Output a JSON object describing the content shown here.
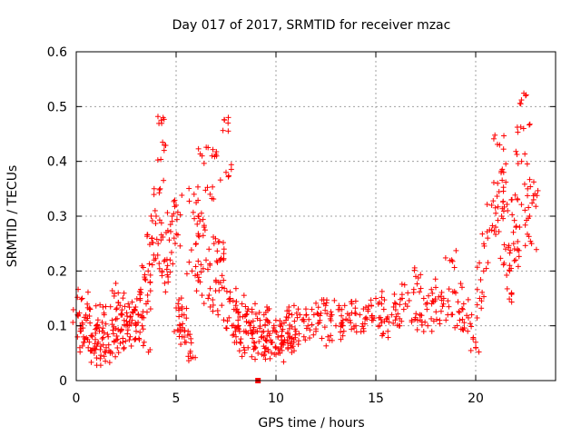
{
  "chart_data": {
    "type": "scatter",
    "title": "Day 017 of 2017, SRMTID for receiver mzac",
    "xlabel": "GPS time / hours",
    "ylabel": "SRMTID / TECUs",
    "xlim": [
      0,
      24
    ],
    "ylim": [
      0,
      0.6
    ],
    "xticks": [
      0,
      5,
      10,
      15,
      20
    ],
    "xtick_labels": [
      "0",
      "5",
      "10",
      "15",
      "20"
    ],
    "yticks": [
      0,
      0.1,
      0.2,
      0.3,
      0.4,
      0.5,
      0.6
    ],
    "ytick_labels": [
      "0",
      "0.1",
      "0.2",
      "0.3",
      "0.4",
      "0.5",
      "0.6"
    ],
    "grid": true,
    "marker": "plus",
    "marker_color": "#ff0000",
    "series": [
      {
        "name": "SRMTID",
        "points": [
          [
            0.1,
            0.12
          ],
          [
            0.2,
            0.09
          ],
          [
            0.3,
            0.15
          ],
          [
            0.4,
            0.07
          ],
          [
            0.5,
            0.11
          ],
          [
            0.6,
            0.06
          ],
          [
            0.7,
            0.13
          ],
          [
            0.8,
            0.08
          ],
          [
            0.9,
            0.05
          ],
          [
            1.0,
            0.1
          ],
          [
            1.1,
            0.07
          ],
          [
            1.2,
            0.04
          ],
          [
            1.3,
            0.09
          ],
          [
            1.4,
            0.12
          ],
          [
            1.5,
            0.06
          ],
          [
            1.6,
            0.08
          ],
          [
            1.7,
            0.05
          ],
          [
            1.8,
            0.11
          ],
          [
            1.9,
            0.07
          ],
          [
            2.0,
            0.13
          ],
          [
            2.1,
            0.16
          ],
          [
            2.2,
            0.09
          ],
          [
            2.3,
            0.12
          ],
          [
            2.4,
            0.06
          ],
          [
            2.5,
            0.1
          ],
          [
            2.6,
            0.14
          ],
          [
            2.7,
            0.08
          ],
          [
            2.8,
            0.11
          ],
          [
            2.9,
            0.13
          ],
          [
            3.0,
            0.09
          ],
          [
            3.1,
            0.12
          ],
          [
            3.2,
            0.15
          ],
          [
            3.3,
            0.1
          ],
          [
            3.4,
            0.07
          ],
          [
            3.5,
            0.14
          ],
          [
            3.6,
            0.2
          ],
          [
            3.7,
            0.18
          ],
          [
            3.8,
            0.26
          ],
          [
            3.9,
            0.22
          ],
          [
            4.0,
            0.3
          ],
          [
            4.1,
            0.25
          ],
          [
            4.2,
            0.35
          ],
          [
            4.3,
            0.2
          ],
          [
            4.35,
            0.48
          ],
          [
            4.4,
            0.42
          ],
          [
            4.5,
            0.27
          ],
          [
            4.6,
            0.18
          ],
          [
            4.7,
            0.22
          ],
          [
            4.8,
            0.3
          ],
          [
            4.9,
            0.26
          ],
          [
            5.0,
            0.32
          ],
          [
            5.1,
            0.14
          ],
          [
            5.2,
            0.1
          ],
          [
            5.3,
            0.08
          ],
          [
            5.4,
            0.12
          ],
          [
            5.5,
            0.07
          ],
          [
            5.6,
            0.09
          ],
          [
            5.7,
            0.05
          ],
          [
            5.8,
            0.2
          ],
          [
            5.9,
            0.34
          ],
          [
            6.0,
            0.25
          ],
          [
            6.1,
            0.3
          ],
          [
            6.2,
            0.18
          ],
          [
            6.3,
            0.41
          ],
          [
            6.4,
            0.28
          ],
          [
            6.5,
            0.22
          ],
          [
            6.6,
            0.15
          ],
          [
            6.7,
            0.34
          ],
          [
            6.8,
            0.41
          ],
          [
            6.9,
            0.25
          ],
          [
            7.0,
            0.18
          ],
          [
            7.1,
            0.12
          ],
          [
            7.2,
            0.22
          ],
          [
            7.3,
            0.17
          ],
          [
            7.4,
            0.24
          ],
          [
            7.5,
            0.38
          ],
          [
            7.6,
            0.47
          ],
          [
            7.7,
            0.15
          ],
          [
            7.8,
            0.1
          ],
          [
            7.9,
            0.13
          ],
          [
            8.0,
            0.08
          ],
          [
            8.1,
            0.11
          ],
          [
            8.2,
            0.07
          ],
          [
            8.3,
            0.14
          ],
          [
            8.4,
            0.09
          ],
          [
            8.5,
            0.12
          ],
          [
            8.6,
            0.06
          ],
          [
            8.7,
            0.1
          ],
          [
            8.8,
            0.13
          ],
          [
            8.9,
            0.07
          ],
          [
            9.0,
            0.09
          ],
          [
            9.1,
            0.05
          ],
          [
            9.2,
            0.11
          ],
          [
            9.3,
            0.08
          ],
          [
            9.4,
            0.12
          ],
          [
            9.5,
            0.06
          ],
          [
            9.6,
            0.09
          ],
          [
            9.7,
            0.04
          ],
          [
            9.8,
            0.07
          ],
          [
            9.9,
            0.1
          ],
          [
            10.0,
            0.06
          ],
          [
            10.1,
            0.08
          ],
          [
            10.2,
            0.05
          ],
          [
            10.3,
            0.09
          ],
          [
            10.4,
            0.07
          ],
          [
            10.5,
            0.11
          ],
          [
            10.6,
            0.06
          ],
          [
            10.7,
            0.08
          ],
          [
            10.8,
            0.12
          ],
          [
            10.9,
            0.07
          ],
          [
            11.0,
            0.09
          ],
          [
            11.2,
            0.12
          ],
          [
            11.4,
            0.08
          ],
          [
            11.6,
            0.1
          ],
          [
            11.8,
            0.13
          ],
          [
            12.0,
            0.09
          ],
          [
            12.2,
            0.11
          ],
          [
            12.4,
            0.14
          ],
          [
            12.6,
            0.08
          ],
          [
            12.8,
            0.12
          ],
          [
            13.0,
            0.1
          ],
          [
            13.2,
            0.13
          ],
          [
            13.4,
            0.09
          ],
          [
            13.6,
            0.11
          ],
          [
            13.8,
            0.14
          ],
          [
            14.0,
            0.1
          ],
          [
            14.2,
            0.12
          ],
          [
            14.4,
            0.09
          ],
          [
            14.6,
            0.13
          ],
          [
            14.8,
            0.11
          ],
          [
            15.0,
            0.15
          ],
          [
            15.2,
            0.1
          ],
          [
            15.4,
            0.13
          ],
          [
            15.6,
            0.09
          ],
          [
            15.8,
            0.12
          ],
          [
            16.0,
            0.14
          ],
          [
            16.2,
            0.1
          ],
          [
            16.4,
            0.13
          ],
          [
            16.6,
            0.16
          ],
          [
            16.8,
            0.11
          ],
          [
            17.0,
            0.19
          ],
          [
            17.2,
            0.12
          ],
          [
            17.4,
            0.15
          ],
          [
            17.6,
            0.1
          ],
          [
            17.8,
            0.14
          ],
          [
            18.0,
            0.17
          ],
          [
            18.2,
            0.11
          ],
          [
            18.4,
            0.15
          ],
          [
            18.6,
            0.12
          ],
          [
            18.8,
            0.22
          ],
          [
            19.0,
            0.16
          ],
          [
            19.2,
            0.11
          ],
          [
            19.4,
            0.14
          ],
          [
            19.6,
            0.09
          ],
          [
            19.8,
            0.12
          ],
          [
            20.0,
            0.07
          ],
          [
            20.2,
            0.15
          ],
          [
            20.4,
            0.2
          ],
          [
            20.6,
            0.26
          ],
          [
            20.8,
            0.32
          ],
          [
            21.0,
            0.28
          ],
          [
            21.1,
            0.36
          ],
          [
            21.2,
            0.43
          ],
          [
            21.3,
            0.3
          ],
          [
            21.4,
            0.38
          ],
          [
            21.5,
            0.24
          ],
          [
            21.6,
            0.31
          ],
          [
            21.7,
            0.2
          ],
          [
            21.8,
            0.16
          ],
          [
            21.9,
            0.25
          ],
          [
            22.0,
            0.22
          ],
          [
            22.1,
            0.33
          ],
          [
            22.2,
            0.28
          ],
          [
            22.3,
            0.4
          ],
          [
            22.4,
            0.46
          ],
          [
            22.5,
            0.52
          ],
          [
            22.6,
            0.35
          ],
          [
            22.7,
            0.3
          ],
          [
            22.8,
            0.25
          ],
          [
            22.9,
            0.33
          ]
        ]
      },
      {
        "name": "marker",
        "marker": "square",
        "points": [
          [
            9.1,
            0.0
          ]
        ]
      }
    ]
  }
}
